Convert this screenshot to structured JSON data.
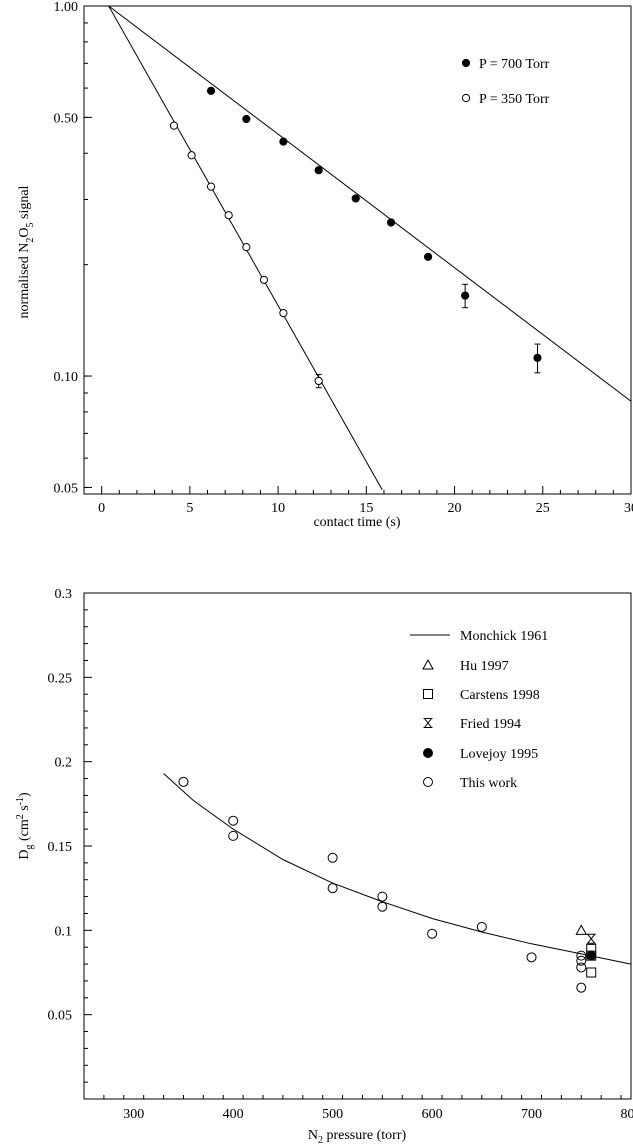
{
  "chart_data": [
    {
      "type": "scatter",
      "xlabel": "contact time (s)",
      "ylabel_parts": {
        "a": "normalised N",
        "b": "2",
        "c": "O",
        "d": "5",
        "e": " signal"
      },
      "xlim": [
        -1,
        30
      ],
      "ylim": [
        0.048,
        1.0
      ],
      "yscale": "log",
      "xticks": [
        "0",
        "5",
        "10",
        "15",
        "20",
        "25",
        "30"
      ],
      "yticks": [
        "0.05",
        "0.10",
        "0.50",
        "1.00"
      ],
      "legend_position": "top-right",
      "series": [
        {
          "name": "P = 700 Torr",
          "marker": "filled-circle",
          "x": [
            6.2,
            8.2,
            10.3,
            12.3,
            14.4,
            16.4,
            18.5,
            20.6,
            24.7
          ],
          "y": [
            0.59,
            0.495,
            0.43,
            0.36,
            0.302,
            0.26,
            0.21,
            0.165,
            0.112
          ],
          "err": [
            0,
            0,
            0,
            0,
            0,
            0,
            0,
            0.012,
            0.01
          ]
        },
        {
          "name": "P = 350 Torr",
          "marker": "open-circle",
          "x": [
            4.1,
            5.1,
            6.2,
            7.2,
            8.2,
            9.2,
            10.3,
            12.3
          ],
          "y": [
            0.475,
            0.395,
            0.325,
            0.272,
            0.223,
            0.182,
            0.148,
            0.097
          ],
          "err": [
            0,
            0,
            0,
            0,
            0,
            0,
            0,
            0.004
          ]
        }
      ],
      "fits": [
        {
          "x": [
            0.4,
            30
          ],
          "y": [
            1.0,
            0.0855
          ]
        },
        {
          "x": [
            0.4,
            15.9
          ],
          "y": [
            1.0,
            0.0493
          ]
        }
      ]
    },
    {
      "type": "scatter",
      "xlabel_parts": {
        "a": "N",
        "b": "2",
        "c": " pressure (torr)"
      },
      "ylabel_parts": {
        "a": "D",
        "b": "g",
        "c": " (cm",
        "d": "2",
        "e": " s",
        "f": "-1",
        "g": ")"
      },
      "xlim": [
        250,
        800
      ],
      "ylim": [
        0,
        0.3
      ],
      "xticks": [
        "300",
        "400",
        "500",
        "600",
        "700",
        "800"
      ],
      "yticks": [
        "0.05",
        "0.1",
        "0.15",
        "0.2",
        "0.25",
        "0.3"
      ],
      "legend_position": "top-right",
      "series": [
        {
          "name": "Monchick 1961",
          "marker": "line",
          "x": [
            330,
            360,
            400,
            450,
            500,
            550,
            600,
            650,
            700,
            750,
            800
          ],
          "y": [
            0.193,
            0.177,
            0.16,
            0.142,
            0.128,
            0.117,
            0.107,
            0.099,
            0.092,
            0.086,
            0.08
          ]
        },
        {
          "name": "Hu 1997",
          "marker": "open-triangle",
          "x": [
            750
          ],
          "y": [
            0.1
          ]
        },
        {
          "name": "Carstens 1998",
          "marker": "open-square",
          "x": [
            760,
            760,
            760
          ],
          "y": [
            0.089,
            0.085,
            0.075
          ]
        },
        {
          "name": "Fried 1994",
          "marker": "hourglass",
          "x": [
            760
          ],
          "y": [
            0.095
          ]
        },
        {
          "name": "Lovejoy 1995",
          "marker": "filled-circle",
          "x": [
            760
          ],
          "y": [
            0.085
          ]
        },
        {
          "name": "This work",
          "marker": "open-circle",
          "x": [
            350,
            400,
            400,
            500,
            500,
            550,
            550,
            600,
            650,
            700,
            750,
            750,
            750,
            750
          ],
          "y": [
            0.188,
            0.165,
            0.156,
            0.143,
            0.125,
            0.12,
            0.114,
            0.098,
            0.102,
            0.084,
            0.085,
            0.082,
            0.078,
            0.066
          ]
        }
      ]
    }
  ]
}
